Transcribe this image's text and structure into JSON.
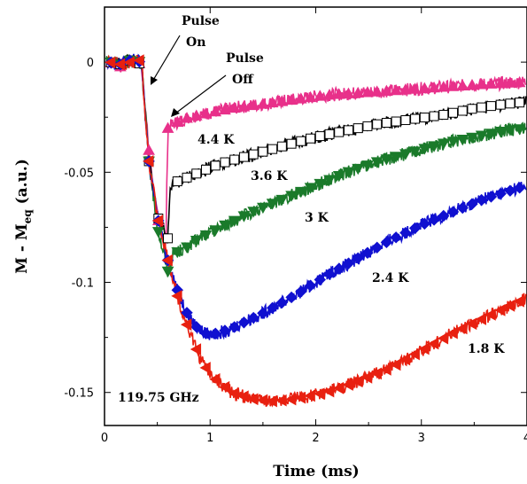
{
  "chart_data": {
    "type": "line",
    "xlabel": "Time (ms)",
    "ylabel": "M - M",
    "ylabel_sub": "eq",
    "ylabel_unit": " (a.u.)",
    "xlim": [
      0,
      4
    ],
    "ylim": [
      -0.165,
      0.025
    ],
    "xticks": [
      0,
      1,
      2,
      3,
      4
    ],
    "xtick_labels": [
      "0",
      "1",
      "2",
      "3",
      "4"
    ],
    "yticks": [
      0,
      -0.05,
      -0.1,
      -0.15
    ],
    "ytick_labels": [
      "0",
      "-0.05",
      "-0.1",
      "-0.15"
    ],
    "grid": false,
    "frequency_label": "119.75 GHz",
    "annotations": [
      {
        "text_line1": "Pulse",
        "text_line2": "On",
        "x": 0.42,
        "y": 0.0
      },
      {
        "text_line1": "Pulse",
        "text_line2": "Off",
        "x": 0.62,
        "y": -0.025
      }
    ],
    "series": [
      {
        "name": "4.4 K",
        "color": "#e8308a",
        "marker": "triangle-up",
        "x": [
          0.05,
          0.15,
          0.25,
          0.35,
          0.42,
          0.5,
          0.58,
          0.6,
          0.65,
          0.8,
          1.0,
          1.2,
          1.5,
          1.8,
          2.1,
          2.4,
          2.7,
          3.0,
          3.3,
          3.6,
          4.0
        ],
        "y": [
          0.0,
          -0.002,
          0.001,
          -0.001,
          -0.04,
          -0.07,
          -0.085,
          -0.03,
          -0.028,
          -0.025,
          -0.023,
          -0.021,
          -0.019,
          -0.017,
          -0.015,
          -0.014,
          -0.013,
          -0.012,
          -0.011,
          -0.01,
          -0.009
        ]
      },
      {
        "name": "3.6 K",
        "color": "#000000",
        "marker": "square",
        "x": [
          0.05,
          0.15,
          0.25,
          0.35,
          0.42,
          0.5,
          0.6,
          0.62,
          0.7,
          0.9,
          1.1,
          1.4,
          1.7,
          2.0,
          2.3,
          2.6,
          2.9,
          3.2,
          3.5,
          3.8,
          4.0
        ],
        "y": [
          0.0,
          -0.001,
          0.001,
          -0.001,
          -0.045,
          -0.07,
          -0.08,
          -0.055,
          -0.054,
          -0.05,
          -0.046,
          -0.042,
          -0.038,
          -0.034,
          -0.031,
          -0.028,
          -0.026,
          -0.024,
          -0.021,
          -0.019,
          -0.018
        ]
      },
      {
        "name": "3 K",
        "color": "#1a7a2a",
        "marker": "triangle-down",
        "x": [
          0.05,
          0.15,
          0.25,
          0.35,
          0.42,
          0.5,
          0.6,
          0.65,
          0.75,
          0.9,
          1.1,
          1.4,
          1.7,
          2.0,
          2.3,
          2.6,
          2.9,
          3.2,
          3.5,
          3.8,
          4.0
        ],
        "y": [
          0.0,
          -0.001,
          0.001,
          0.0,
          -0.045,
          -0.075,
          -0.095,
          -0.087,
          -0.085,
          -0.08,
          -0.075,
          -0.068,
          -0.062,
          -0.056,
          -0.05,
          -0.045,
          -0.041,
          -0.037,
          -0.034,
          -0.031,
          -0.03
        ]
      },
      {
        "name": "2.4 K",
        "color": "#1010d0",
        "marker": "diamond",
        "x": [
          0.05,
          0.15,
          0.25,
          0.35,
          0.42,
          0.5,
          0.6,
          0.7,
          0.8,
          0.9,
          1.0,
          1.2,
          1.5,
          1.8,
          2.1,
          2.4,
          2.7,
          3.0,
          3.3,
          3.6,
          4.0
        ],
        "y": [
          0.0,
          -0.001,
          0.001,
          0.0,
          -0.045,
          -0.07,
          -0.09,
          -0.105,
          -0.116,
          -0.122,
          -0.124,
          -0.121,
          -0.114,
          -0.106,
          -0.097,
          -0.089,
          -0.081,
          -0.074,
          -0.068,
          -0.062,
          -0.056
        ]
      },
      {
        "name": "1.8 K",
        "color": "#e82010",
        "marker": "triangle-left",
        "x": [
          0.05,
          0.15,
          0.25,
          0.35,
          0.42,
          0.5,
          0.6,
          0.7,
          0.8,
          0.9,
          1.0,
          1.2,
          1.4,
          1.6,
          1.8,
          2.1,
          2.4,
          2.7,
          3.0,
          3.3,
          3.6,
          4.0
        ],
        "y": [
          0.0,
          -0.001,
          0.0,
          0.001,
          -0.045,
          -0.07,
          -0.09,
          -0.108,
          -0.122,
          -0.134,
          -0.142,
          -0.15,
          -0.153,
          -0.154,
          -0.153,
          -0.15,
          -0.145,
          -0.139,
          -0.131,
          -0.123,
          -0.116,
          -0.107
        ]
      }
    ]
  }
}
